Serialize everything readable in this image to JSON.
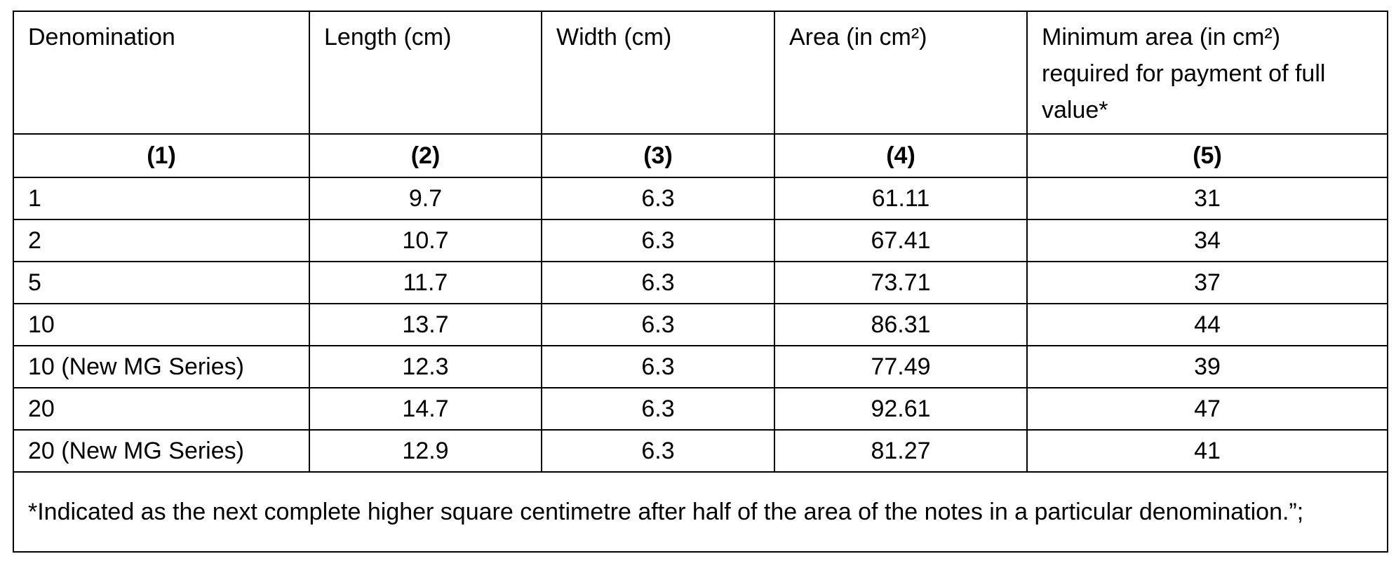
{
  "table": {
    "header": [
      "Denomination",
      "Length (cm)",
      "Width (cm)",
      "Area (in cm²)",
      "Minimum area (in cm²) required for payment of full value*"
    ],
    "column_numbers": [
      "(1)",
      "(2)",
      "(3)",
      "(4)",
      "(5)"
    ],
    "rows": [
      [
        "1",
        "9.7",
        "6.3",
        "61.11",
        "31"
      ],
      [
        "2",
        "10.7",
        "6.3",
        "67.41",
        "34"
      ],
      [
        "5",
        "11.7",
        "6.3",
        "73.71",
        "37"
      ],
      [
        "10",
        "13.7",
        "6.3",
        "86.31",
        "44"
      ],
      [
        "10 (New MG Series)",
        "12.3",
        "6.3",
        "77.49",
        "39"
      ],
      [
        "20",
        "14.7",
        "6.3",
        "92.61",
        "47"
      ],
      [
        "20 (New MG Series)",
        "12.9",
        "6.3",
        "81.27",
        "41"
      ]
    ],
    "footnote": "*Indicated as the next complete higher square centimetre after half of the area of the notes in a particular denomination.”;"
  }
}
